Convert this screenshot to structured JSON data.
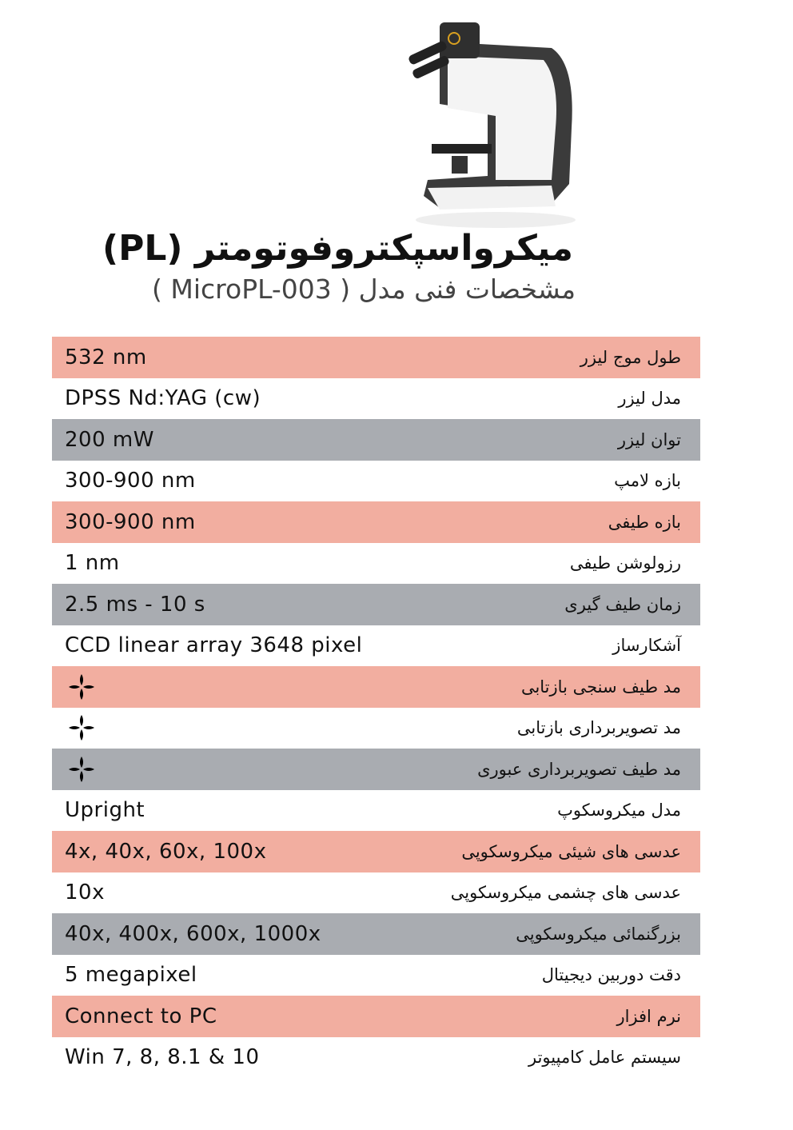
{
  "header": {
    "title": "میکرواسپکتروفوتومتر (PL)",
    "subtitle": "مشخصات فنی مدل ( MicroPL-003 )"
  },
  "colors": {
    "pink": "#f2aea0",
    "gray": "#a9acb1",
    "white": "#ffffff"
  },
  "specs": [
    {
      "label": "طول موج لیزر",
      "value": "532 nm",
      "bg": "pink"
    },
    {
      "label": "مدل لیزر",
      "value": "DPSS Nd:YAG (cw)",
      "bg": "white"
    },
    {
      "label": "توان لیزر",
      "value": "200 mW",
      "bg": "gray"
    },
    {
      "label": "بازه لامپ",
      "value": "300-900 nm",
      "bg": "white"
    },
    {
      "label": "بازه طیفی",
      "value": "300-900 nm",
      "bg": "pink"
    },
    {
      "label": "رزولوشن طیفی",
      "value": "1 nm",
      "bg": "white"
    },
    {
      "label": "زمان طیف گیری",
      "value": "2.5 ms - 10 s",
      "bg": "gray"
    },
    {
      "label": "آشکارساز",
      "value": "CCD linear array 3648 pixel",
      "bg": "white"
    },
    {
      "label": "مد  طیف سنجی بازتابی",
      "value": null,
      "icon": "four-petal-check-icon",
      "bg": "pink"
    },
    {
      "label": "مد  تصویربرداری بازتابی",
      "value": null,
      "icon": "four-petal-check-icon",
      "bg": "white"
    },
    {
      "label": "مد  طیف تصویربرداری عبوری",
      "value": null,
      "icon": "four-petal-check-icon",
      "bg": "gray"
    },
    {
      "label": "مدل میکروسکوپ",
      "value": "Upright",
      "bg": "white"
    },
    {
      "label": "عدسی های شیئی میکروسکوپی",
      "value": "4x, 40x, 60x, 100x",
      "bg": "pink"
    },
    {
      "label": "عدسی های چشمی میکروسکوپی",
      "value": "10x",
      "bg": "white"
    },
    {
      "label": "بزرگنمائی میکروسکوپی",
      "value": "40x, 400x, 600x, 1000x",
      "bg": "gray"
    },
    {
      "label": "دقت دوربین دیجیتال",
      "value": "5 megapixel",
      "bg": "white"
    },
    {
      "label": "نرم افزار",
      "value": "Connect to PC",
      "bg": "pink"
    },
    {
      "label": "سیستم عامل کامپیوتر",
      "value": "Win 7, 8, 8.1 & 10",
      "bg": "white"
    }
  ]
}
